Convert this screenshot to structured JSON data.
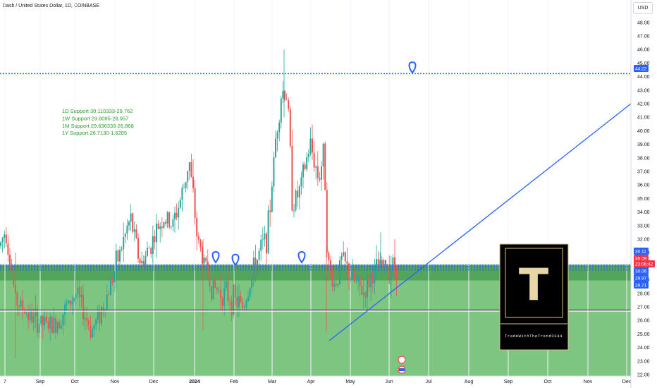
{
  "header": {
    "title": "Dash / United States Dollar, 1D, COINBASE",
    "currency": "USD"
  },
  "chart_data": {
    "type": "candlestick",
    "symbol": "DASHUSD",
    "interval": "1D",
    "exchange": "COINBASE",
    "ylim": [
      21.5,
      48.8
    ],
    "y_ticks": [
      22,
      23,
      24,
      25,
      26,
      27,
      28,
      29,
      30,
      31,
      32,
      33,
      34,
      35,
      36,
      37,
      38,
      39,
      40,
      41,
      42,
      43,
      44,
      45,
      46,
      47,
      48
    ],
    "x_ticks": [
      "7",
      "Sep",
      "Oct",
      "Nov",
      "Dec",
      "2024",
      "Feb",
      "Mar",
      "Apr",
      "May",
      "Jun",
      "Jul",
      "Aug",
      "Sep",
      "Oct",
      "Nov",
      "Dec"
    ],
    "support_notes": [
      "1D Support 30.110333-29.762",
      "1W Support 29.8095-28.957",
      "1M Support 29.636333-26.868",
      "1Y Support 26.7130-1.6285"
    ],
    "price_tags": [
      {
        "label": "44.22",
        "value": 44.22,
        "color": "#2962ff"
      },
      {
        "label": "30.11",
        "value": 30.11,
        "color": "#2962ff"
      },
      {
        "label": "30.09",
        "value": 30.09,
        "color": "#f23645"
      },
      {
        "label": "23:06:42",
        "value": 29.7,
        "color": "#f23645"
      },
      {
        "label": "30.06",
        "value": 30.06,
        "color": "#2962ff"
      },
      {
        "label": "29.97",
        "value": 29.97,
        "color": "#2962ff"
      },
      {
        "label": "29.71",
        "value": 29.71,
        "color": "#2962ff"
      }
    ],
    "horizontal_levels": [
      44.22,
      30.11,
      29.97,
      29.71,
      26.75
    ],
    "support_zone": [
      21.5,
      30.11
    ],
    "trendline": {
      "from": [
        "2024-04-01",
        24.5
      ],
      "to": [
        "2024-12-31",
        42.0
      ]
    },
    "colors": {
      "up": "#26a69a",
      "down": "#ef5350",
      "zone": "#4caf50",
      "level": "#2962ff",
      "trendline": "#2962ff"
    }
  },
  "watermark": {
    "letter": "T",
    "caption": "TradeWithTheTrend3344"
  }
}
